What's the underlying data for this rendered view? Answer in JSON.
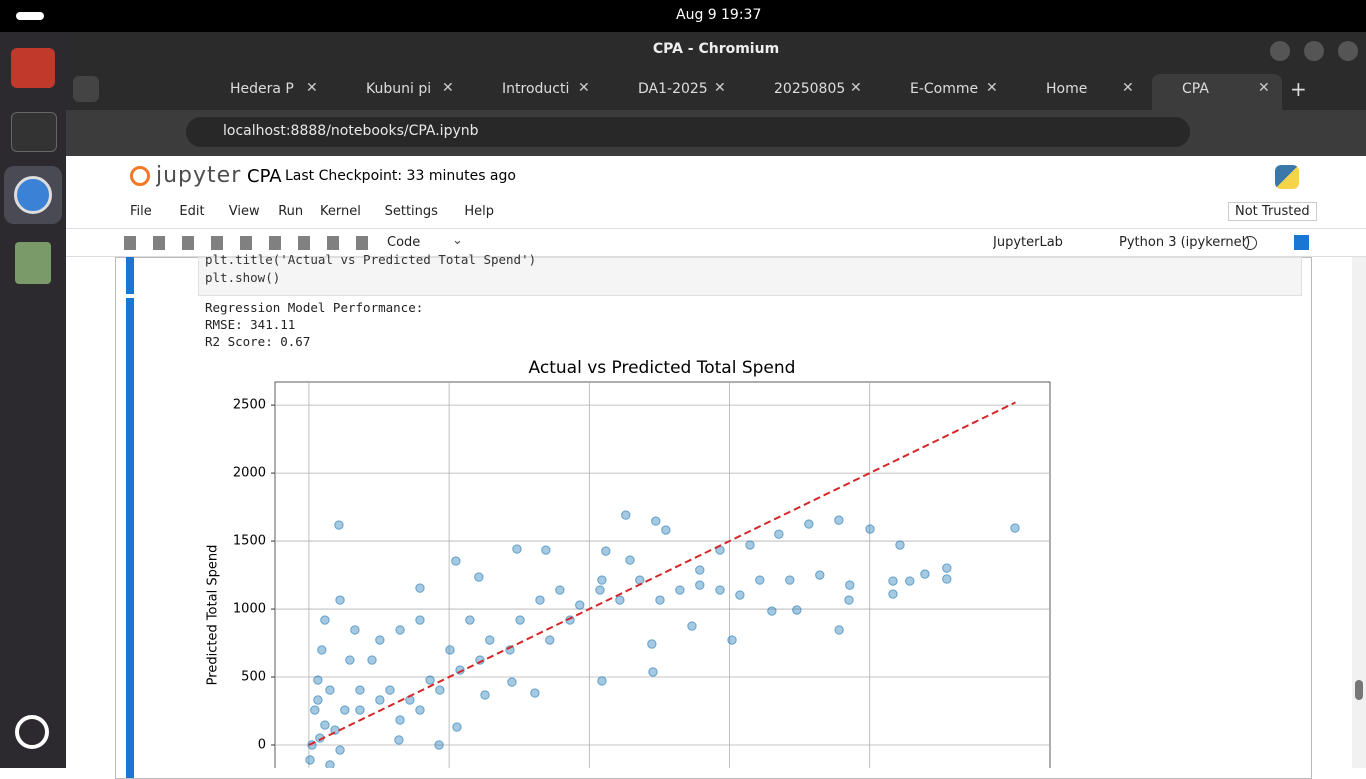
{
  "system_bar": {
    "date": "Aug 9",
    "time": "19:37"
  },
  "window": {
    "title": "CPA - Chromium"
  },
  "tabs": [
    "Hedera P",
    "Kubuni pi",
    "Introducti",
    "DA1-2025",
    "20250805",
    "E-Comme",
    "Home",
    "CPA"
  ],
  "address": "localhost:8888/notebooks/CPA.ipynb",
  "jupyter": {
    "logo": "jupyter",
    "notebook": "CPA",
    "checkpoint": "Last Checkpoint: 33 minutes ago",
    "menu": [
      "File",
      "Edit",
      "View",
      "Run",
      "Kernel",
      "Settings",
      "Help"
    ],
    "trusted": "Not Trusted",
    "cell_type": "Code",
    "jupyterlab": "JupyterLab",
    "kernel": "Python 3 (ipykernel)"
  },
  "code_lines": [
    "plt.title('Actual vs Predicted Total Spend')",
    "plt.show()"
  ],
  "output_lines": [
    "Regression Model Performance:",
    "RMSE: 341.11",
    "R2 Score: 0.67"
  ],
  "chart_data": {
    "type": "scatter",
    "title": "Actual vs Predicted Total Spend",
    "y_label": "Predicted Total Spend",
    "xlim": [
      -121,
      2643
    ],
    "ylim": [
      -250,
      2670
    ],
    "xticks": [
      0,
      500,
      1000,
      1500,
      2000
    ],
    "yticks": [
      0,
      500,
      1000,
      1500,
      2000,
      2500
    ],
    "grid": true,
    "color": "#1f77b4",
    "x": [
      107,
      2518,
      1130,
      1237,
      2001,
      1890,
      1783,
      2108,
      742,
      845,
      524,
      1059,
      396,
      606,
      1273,
      1676,
      2275,
      2275,
      2197,
      2143,
      2083,
      2083,
      1926,
      1891,
      1740,
      1651,
      1509,
      1366,
      1223,
      1045,
      1227,
      806,
      724,
      628,
      528,
      464,
      321,
      111,
      75,
      39,
      21,
      32,
      46,
      57,
      111,
      164,
      225,
      289,
      360,
      432,
      503,
      574,
      645,
      753,
      824,
      895,
      966,
      1038,
      1109,
      1180,
      1252,
      1323,
      1394,
      1466,
      1537,
      1608,
      1715,
      1822,
      1929,
      1466,
      1573,
      1394,
      1145,
      1045,
      931,
      859,
      717,
      610,
      539,
      467,
      396,
      325,
      253,
      182,
      128,
      93,
      57,
      11,
      32,
      75,
      146,
      253,
      325,
      396,
      182,
      4
    ],
    "y": [
      1618,
      1596,
      1691,
      1647,
      1588,
      1654,
      1625,
      1471,
      1441,
      1434,
      1353,
      1426,
      1154,
      1235,
      1581,
      1551,
      1301,
      1221,
      1257,
      1206,
      1206,
      1110,
      1066,
      846,
      993,
      985,
      772,
      875,
      743,
      471,
      537,
      382,
      463,
      368,
      132,
      0,
      37,
      -37,
      -147,
      51,
      257,
      478,
      699,
      919,
      1066,
      846,
      625,
      404,
      331,
      478,
      699,
      919,
      772,
      919,
      1066,
      1140,
      1029,
      1140,
      1066,
      1213,
      1066,
      1140,
      1176,
      1140,
      1103,
      1213,
      1213,
      1250,
      1176,
      1434,
      1471,
      1287,
      1360,
      1213,
      919,
      772,
      699,
      625,
      551,
      404,
      257,
      184,
      331,
      404,
      257,
      110,
      147,
      0,
      331,
      404,
      625,
      772,
      846,
      919,
      257,
      -110
    ],
    "ideal_line": {
      "x": [
        0,
        2520
      ],
      "y": [
        0,
        2520
      ],
      "color": "#d62728"
    }
  }
}
